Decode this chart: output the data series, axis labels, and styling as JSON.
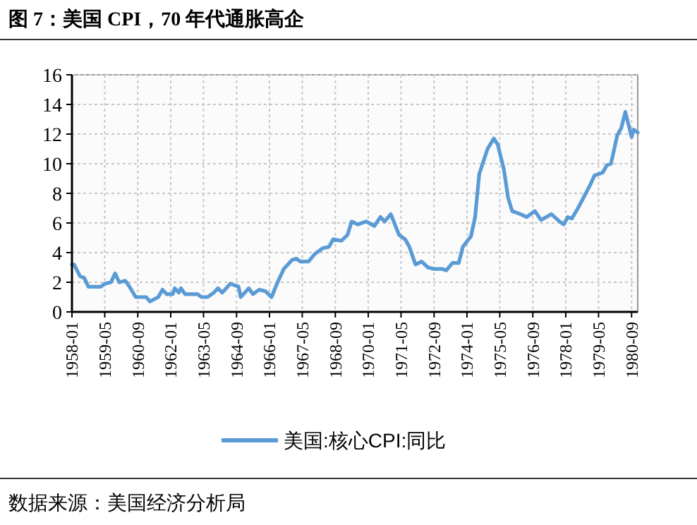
{
  "chart_data": {
    "type": "line",
    "title": "图 7：美国 CPI，70 年代通胀高企",
    "annotations": [
      "数据来源：美国经济分析局"
    ],
    "x": [
      "1958-01",
      "1958-02",
      "1958-05",
      "1958-07",
      "1958-09",
      "1959-03",
      "1959-05",
      "1959-08",
      "1959-10",
      "1959-12",
      "1960-03",
      "1960-05",
      "1960-08",
      "1961-01",
      "1961-03",
      "1961-07",
      "1961-09",
      "1961-11",
      "1962-02",
      "1962-03",
      "1962-05",
      "1962-06",
      "1962-08",
      "1963-02",
      "1963-04",
      "1963-07",
      "1963-10",
      "1963-12",
      "1964-02",
      "1964-04",
      "1964-06",
      "1964-10",
      "1964-11",
      "1965-01",
      "1965-03",
      "1965-05",
      "1965-08",
      "1965-11",
      "1966-02",
      "1966-05",
      "1966-08",
      "1966-12",
      "1967-02",
      "1967-04",
      "1967-08",
      "1967-11",
      "1968-03",
      "1968-06",
      "1968-08",
      "1968-12",
      "1969-03",
      "1969-05",
      "1969-08",
      "1969-12",
      "1970-04",
      "1970-07",
      "1970-09",
      "1970-12",
      "1971-04",
      "1971-07",
      "1971-09",
      "1971-12",
      "1972-03",
      "1972-06",
      "1972-09",
      "1973-01",
      "1973-03",
      "1973-06",
      "1973-09",
      "1973-11",
      "1974-03",
      "1974-05",
      "1974-07",
      "1974-11",
      "1975-02",
      "1975-04",
      "1975-07",
      "1975-09",
      "1975-11",
      "1976-03",
      "1976-06",
      "1976-10",
      "1977-01",
      "1977-06",
      "1977-10",
      "1977-12",
      "1978-02",
      "1978-04",
      "1978-07",
      "1978-10",
      "1979-01",
      "1979-03",
      "1979-07",
      "1979-09",
      "1979-11",
      "1980-02",
      "1980-04",
      "1980-06",
      "1980-09",
      "1980-10",
      "1980-12"
    ],
    "series": [
      {
        "name": "美国:核心CPI:同比",
        "color": "#5b9bd5",
        "values": [
          3.2,
          3.2,
          2.4,
          2.3,
          1.7,
          1.7,
          1.9,
          2.0,
          2.6,
          2.0,
          2.1,
          1.7,
          1.0,
          1.0,
          0.7,
          1.0,
          1.5,
          1.2,
          1.2,
          1.6,
          1.3,
          1.6,
          1.2,
          1.2,
          1.0,
          1.0,
          1.3,
          1.6,
          1.3,
          1.6,
          1.9,
          1.7,
          1.0,
          1.3,
          1.6,
          1.2,
          1.5,
          1.4,
          1.0,
          2.0,
          2.9,
          3.5,
          3.6,
          3.4,
          3.4,
          3.9,
          4.3,
          4.4,
          4.9,
          4.8,
          5.2,
          6.1,
          5.9,
          6.1,
          5.8,
          6.4,
          6.1,
          6.6,
          5.2,
          4.9,
          4.4,
          3.2,
          3.4,
          3.0,
          2.9,
          2.9,
          2.8,
          3.3,
          3.3,
          4.4,
          5.1,
          6.4,
          9.3,
          11.0,
          11.7,
          11.3,
          9.6,
          7.7,
          6.8,
          6.6,
          6.4,
          6.8,
          6.2,
          6.6,
          6.1,
          5.9,
          6.4,
          6.3,
          7.0,
          7.8,
          8.6,
          9.2,
          9.4,
          9.9,
          10.0,
          11.9,
          12.4,
          13.5,
          11.8,
          12.3,
          12.1
        ]
      }
    ],
    "xlim": [
      "1958-01",
      "1980-12"
    ],
    "xticks": [
      "1958-01",
      "1959-05",
      "1960-09",
      "1962-01",
      "1963-05",
      "1964-09",
      "1966-01",
      "1967-05",
      "1968-09",
      "1970-01",
      "1971-05",
      "1972-09",
      "1974-01",
      "1975-05",
      "1976-09",
      "1978-01",
      "1979-05",
      "1980-09"
    ],
    "ylim": [
      0,
      16
    ],
    "yticks": [
      0,
      2,
      4,
      6,
      8,
      10,
      12,
      14,
      16
    ],
    "grid": true,
    "legend": "bottom",
    "line_style": "solid",
    "marker": "none"
  }
}
